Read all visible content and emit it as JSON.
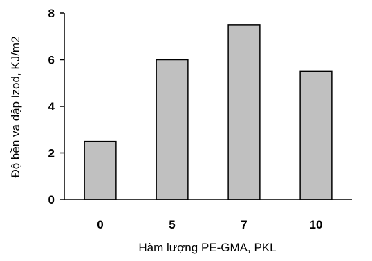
{
  "chart_data": {
    "type": "bar",
    "categories": [
      "0",
      "5",
      "7",
      "10"
    ],
    "values": [
      2.5,
      6.0,
      7.5,
      5.5
    ],
    "title": "",
    "xlabel": "Hàm lượng PE-GMA, PKL",
    "ylabel": "Độ bền va đập Izod, KJ/m2",
    "ylim": [
      0,
      8
    ],
    "yticks": [
      0,
      2,
      4,
      6,
      8
    ],
    "grid": false,
    "legend": "none",
    "bar_color": "#c0c0c0",
    "bar_edge_color": "#000000"
  }
}
